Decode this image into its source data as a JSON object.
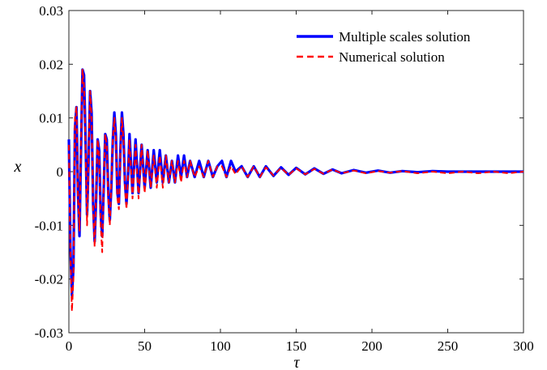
{
  "chart_data": {
    "type": "line",
    "xlabel": "τ",
    "ylabel": "x",
    "xlim": [
      0,
      300
    ],
    "ylim": [
      -0.03,
      0.03
    ],
    "xticks": [
      0,
      50,
      100,
      150,
      200,
      250,
      300
    ],
    "xtick_labels": [
      "0",
      "50",
      "100",
      "150",
      "200",
      "250",
      "300"
    ],
    "yticks": [
      -0.03,
      -0.02,
      -0.01,
      0,
      0.01,
      0.02,
      0.03
    ],
    "ytick_labels": [
      "-0.03",
      "-0.02",
      "-0.01",
      "0",
      "0.01",
      "0.02",
      "0.03"
    ],
    "grid": false,
    "legend_position": "top-right",
    "series": [
      {
        "name": "Multiple scales solution",
        "color": "#0000ff",
        "style": "solid",
        "x": [
          0,
          1,
          2,
          3,
          4,
          5,
          6,
          7,
          8,
          9,
          10,
          11,
          12,
          13,
          14,
          15,
          16,
          17,
          18,
          19,
          20,
          21,
          22,
          23,
          24,
          25,
          26,
          27,
          28,
          29,
          30,
          31,
          32,
          33,
          34,
          35,
          36,
          37,
          38,
          39,
          40,
          42,
          44,
          46,
          48,
          50,
          52,
          54,
          56,
          58,
          60,
          62,
          64,
          66,
          68,
          70,
          72,
          74,
          76,
          78,
          80,
          83,
          86,
          89,
          92,
          95,
          98,
          101,
          104,
          107,
          110,
          114,
          118,
          122,
          126,
          130,
          135,
          140,
          145,
          150,
          156,
          162,
          168,
          174,
          180,
          188,
          196,
          204,
          212,
          220,
          230,
          240,
          250,
          260,
          270,
          280,
          290,
          300
        ],
        "y": [
          0.006,
          -0.014,
          -0.023,
          -0.018,
          0.008,
          0.012,
          -0.004,
          -0.012,
          0.004,
          0.019,
          0.018,
          0.006,
          -0.008,
          0.002,
          0.015,
          0.011,
          -0.006,
          -0.013,
          -0.005,
          0.006,
          0.004,
          -0.008,
          -0.012,
          -0.003,
          0.007,
          0.006,
          -0.004,
          -0.009,
          -0.003,
          0.006,
          0.011,
          0.007,
          -0.004,
          -0.006,
          0.004,
          0.011,
          0.007,
          -0.002,
          -0.006,
          -0.001,
          0.007,
          -0.004,
          0.006,
          -0.004,
          0.005,
          -0.003,
          0.004,
          -0.003,
          0.004,
          -0.002,
          0.004,
          -0.002,
          0.003,
          -0.002,
          0.002,
          -0.002,
          0.003,
          -0.001,
          0.003,
          -0.001,
          0.002,
          -0.001,
          0.002,
          -0.001,
          0.002,
          -0.001,
          0.001,
          0.002,
          -0.001,
          0.002,
          0.0,
          0.001,
          -0.001,
          0.001,
          -0.001,
          0.001,
          -0.0008,
          0.0008,
          -0.0006,
          0.0007,
          -0.0005,
          0.0006,
          -0.0004,
          0.0004,
          -0.0003,
          0.0003,
          -0.0002,
          0.0002,
          -0.0002,
          0.0001,
          -0.0001,
          0.0001,
          0.0,
          0.0,
          0.0,
          0.0,
          0.0,
          0.0
        ]
      },
      {
        "name": "Numerical solution",
        "color": "#ff0000",
        "style": "dashed",
        "x": [
          0,
          1,
          2,
          3,
          4,
          5,
          6,
          7,
          8,
          9,
          10,
          11,
          12,
          13,
          14,
          15,
          16,
          17,
          18,
          19,
          20,
          21,
          22,
          23,
          24,
          25,
          26,
          27,
          28,
          29,
          30,
          31,
          32,
          33,
          34,
          35,
          36,
          37,
          38,
          39,
          40,
          42,
          44,
          46,
          48,
          50,
          52,
          54,
          56,
          58,
          60,
          62,
          64,
          66,
          68,
          70,
          72,
          74,
          76,
          78,
          80,
          83,
          86,
          89,
          92,
          95,
          98,
          101,
          104,
          107,
          110,
          114,
          118,
          122,
          126,
          130,
          135,
          140,
          145,
          150,
          156,
          162,
          168,
          174,
          180,
          188,
          196,
          204,
          212,
          220,
          230,
          240,
          250,
          260,
          270,
          280,
          290,
          300
        ],
        "y": [
          0.005,
          -0.015,
          -0.026,
          -0.02,
          0.01,
          0.012,
          -0.005,
          -0.011,
          0.006,
          0.019,
          0.016,
          0.005,
          -0.01,
          0.003,
          0.015,
          0.01,
          -0.007,
          -0.014,
          -0.004,
          0.006,
          0.003,
          -0.01,
          -0.015,
          -0.002,
          0.007,
          0.005,
          -0.005,
          -0.01,
          -0.002,
          0.006,
          0.01,
          0.006,
          -0.005,
          -0.007,
          0.004,
          0.01,
          0.006,
          -0.003,
          -0.007,
          -0.001,
          0.006,
          -0.005,
          0.005,
          -0.005,
          0.005,
          -0.004,
          0.004,
          -0.003,
          0.003,
          -0.003,
          0.003,
          -0.003,
          0.003,
          -0.002,
          0.002,
          -0.002,
          0.002,
          -0.002,
          0.002,
          -0.001,
          0.002,
          -0.001,
          0.001,
          -0.001,
          0.002,
          -0.001,
          0.001,
          0.001,
          -0.001,
          0.001,
          -0.0005,
          0.001,
          -0.001,
          0.001,
          -0.001,
          0.0008,
          -0.0007,
          0.0007,
          -0.0006,
          0.0006,
          -0.0005,
          0.0005,
          -0.0004,
          0.0004,
          -0.0003,
          0.0002,
          -0.0003,
          0.0001,
          -0.0002,
          0.0001,
          -0.0003,
          0.0,
          -0.0003,
          0.0,
          -0.0003,
          0.0,
          -0.0003,
          0.0
        ]
      }
    ]
  }
}
